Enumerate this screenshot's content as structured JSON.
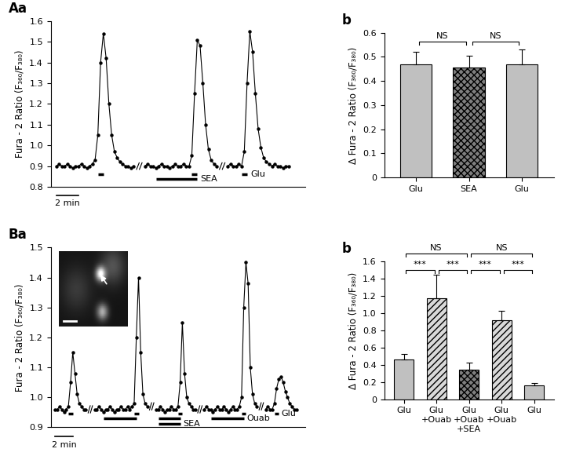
{
  "chart_data": [
    {
      "panel": "Aa",
      "type": "line",
      "y_label": "Fura - 2 Ratio (F₃₆₀/F₃₈₀)",
      "xlim": [
        -0.5,
        22.5
      ],
      "ylim": [
        0.8,
        1.6
      ],
      "yticks": [
        0.8,
        0.9,
        1.0,
        1.1,
        1.2,
        1.3,
        1.4,
        1.5,
        1.6
      ],
      "tick_labels": "y",
      "series": [
        {
          "color": "#000000",
          "marker": "circle",
          "x": [
            0,
            0.25,
            0.5,
            0.75,
            1.0,
            1.25,
            1.5,
            1.75,
            2.0,
            2.25,
            2.5,
            2.75,
            3.0,
            3.25,
            3.5,
            3.75,
            4.0,
            4.25,
            4.5,
            4.75,
            5.0,
            5.25,
            5.5,
            5.75,
            6.0,
            6.25,
            6.5,
            6.75,
            7.0,
            7.5,
            8.0,
            8.25,
            8.5,
            8.75,
            9.0,
            9.25,
            9.5,
            9.75,
            10.0,
            10.25,
            10.5,
            10.75,
            11.0,
            11.25,
            11.5,
            11.75,
            12.0,
            12.25,
            12.5,
            12.75,
            13.0,
            13.25,
            13.5,
            13.75,
            14.0,
            14.25,
            14.5,
            15.0,
            15.5,
            15.75,
            16.0,
            16.25,
            16.5,
            16.75,
            17.0,
            17.25,
            17.5,
            17.75,
            18.0,
            18.25,
            18.5,
            18.75,
            19.0,
            19.25,
            19.5,
            19.75,
            20.0,
            20.25,
            20.5,
            20.75,
            21.0
          ],
          "values": [
            0.9,
            0.91,
            0.9,
            0.9,
            0.91,
            0.9,
            0.89,
            0.9,
            0.9,
            0.91,
            0.9,
            0.89,
            0.9,
            0.91,
            0.93,
            1.05,
            1.4,
            1.54,
            1.42,
            1.2,
            1.05,
            0.97,
            0.94,
            0.92,
            0.91,
            0.9,
            0.9,
            0.89,
            0.9,
            null,
            0.9,
            0.91,
            0.9,
            0.9,
            0.89,
            0.9,
            0.91,
            0.9,
            0.9,
            0.89,
            0.9,
            0.91,
            0.9,
            0.9,
            0.91,
            0.9,
            0.9,
            0.95,
            1.25,
            1.51,
            1.48,
            1.3,
            1.1,
            0.98,
            0.93,
            0.91,
            0.9,
            null,
            0.9,
            0.91,
            0.9,
            0.9,
            0.91,
            0.9,
            0.97,
            1.3,
            1.55,
            1.45,
            1.25,
            1.08,
            0.99,
            0.94,
            0.92,
            0.91,
            0.9,
            0.91,
            0.9,
            0.9,
            0.89,
            0.9,
            0.9
          ]
        }
      ],
      "events": [
        {
          "start": 3.75,
          "end": 4.25
        },
        {
          "start": 12.25,
          "end": 12.75
        },
        {
          "start": 9.0,
          "end": 12.75,
          "label": "SEA"
        },
        {
          "start": 16.75,
          "end": 17.25,
          "label": "Glu"
        }
      ],
      "scale_bar": {
        "length": 2,
        "label": "2 min"
      }
    },
    {
      "panel": "b",
      "type": "bar",
      "y_label": "Δ Fura - 2 Ratio (F₃₆₀/F₃₈₀)",
      "categories": [
        "Glu",
        "SEA",
        "Glu"
      ],
      "values": [
        0.47,
        0.455,
        0.47
      ],
      "error": [
        0.05,
        0.05,
        0.06
      ],
      "colors": [
        "#c0c0c0",
        "#7f7f7f",
        "#c0c0c0"
      ],
      "ylim": [
        0,
        0.6
      ],
      "yticks": [
        0,
        0.1,
        0.2,
        0.3,
        0.4,
        0.5,
        0.6
      ],
      "significance": [
        {
          "from": 0,
          "to": 1,
          "label": "NS"
        },
        {
          "from": 1,
          "to": 2,
          "label": "NS"
        }
      ]
    },
    {
      "panel": "Ba",
      "type": "line",
      "y_label": "Fura - 2 Ratio (F₃₆₀/F₃₈₀)",
      "xlim": [
        -0.5,
        28.5
      ],
      "ylim": [
        0.9,
        1.5
      ],
      "yticks": [
        0.9,
        1.0,
        1.1,
        1.2,
        1.3,
        1.4,
        1.5
      ],
      "tick_labels": "y",
      "series": [
        {
          "color": "#000000",
          "marker": "circle",
          "x": [
            0,
            0.25,
            0.5,
            0.75,
            1.0,
            1.25,
            1.5,
            1.75,
            2.0,
            2.25,
            2.5,
            2.75,
            3.0,
            3.25,
            3.5,
            4.0,
            4.5,
            4.75,
            5.0,
            5.25,
            5.5,
            5.75,
            6.0,
            6.25,
            6.5,
            6.75,
            7.0,
            7.25,
            7.5,
            7.75,
            8.0,
            8.25,
            8.5,
            8.75,
            9.0,
            9.25,
            9.5,
            9.75,
            10.0,
            10.25,
            10.5,
            11.0,
            11.5,
            11.75,
            12.0,
            12.25,
            12.5,
            12.75,
            13.0,
            13.25,
            13.5,
            13.75,
            14.0,
            14.25,
            14.5,
            14.75,
            15.0,
            15.25,
            15.5,
            15.75,
            16.0,
            16.5,
            17.0,
            17.25,
            17.5,
            17.75,
            18.0,
            18.25,
            18.5,
            18.75,
            19.0,
            19.25,
            19.5,
            19.75,
            20.0,
            20.25,
            20.5,
            20.75,
            21.0,
            21.25,
            21.5,
            21.75,
            22.0,
            22.25,
            22.5,
            22.75,
            23.0,
            23.5,
            24.0,
            24.25,
            24.5,
            24.75,
            25.0,
            25.25,
            25.5,
            25.75,
            26.0,
            26.25,
            26.5,
            26.75,
            27.0,
            27.25,
            27.5
          ],
          "values": [
            0.96,
            0.96,
            0.97,
            0.96,
            0.95,
            0.96,
            0.97,
            1.05,
            1.15,
            1.08,
            1.01,
            0.98,
            0.97,
            0.96,
            0.96,
            null,
            0.96,
            0.96,
            0.97,
            0.96,
            0.95,
            0.96,
            0.96,
            0.97,
            0.96,
            0.95,
            0.96,
            0.96,
            0.97,
            0.96,
            0.96,
            0.97,
            0.96,
            0.97,
            0.98,
            1.2,
            1.4,
            1.15,
            1.01,
            0.98,
            0.97,
            null,
            0.96,
            0.96,
            0.97,
            0.96,
            0.95,
            0.96,
            0.96,
            0.97,
            0.96,
            0.96,
            0.97,
            1.05,
            1.25,
            1.08,
            1.0,
            0.98,
            0.97,
            0.96,
            0.96,
            null,
            0.96,
            0.97,
            0.96,
            0.96,
            0.95,
            0.96,
            0.97,
            0.96,
            0.96,
            0.97,
            0.96,
            0.95,
            0.96,
            0.97,
            0.96,
            0.96,
            0.97,
            1.0,
            1.3,
            1.45,
            1.38,
            1.1,
            1.01,
            0.98,
            0.97,
            null,
            0.96,
            0.97,
            0.96,
            0.96,
            0.98,
            1.03,
            1.06,
            1.07,
            1.05,
            1.02,
            1.0,
            0.98,
            0.97,
            0.96,
            0.96
          ]
        }
      ],
      "events": [
        {
          "start": 1.5,
          "end": 2.0
        },
        {
          "start": 9.0,
          "end": 9.5
        },
        {
          "start": 5.5,
          "end": 9.25
        },
        {
          "start": 14.0,
          "end": 14.5
        },
        {
          "start": 11.75,
          "end": 14.25
        },
        {
          "start": 11.75,
          "end": 14.25,
          "label": "SEA"
        },
        {
          "start": 21.25,
          "end": 21.75
        },
        {
          "start": 17.75,
          "end": 21.5,
          "label": "Ouab"
        },
        {
          "start": 25.0,
          "end": 25.5,
          "label": "Glu"
        }
      ],
      "scale_bar": {
        "length": 2,
        "label": "2 min"
      }
    },
    {
      "panel": "b",
      "type": "bar",
      "y_label": "Δ Fura - 2 Ratio (F₃₆₀/F₃₈₀)",
      "categories": [
        "Glu",
        "Glu\n+Ouab",
        "Glu\n+Ouab\n+SEA",
        "Glu\n+Ouab",
        "Glu"
      ],
      "values": [
        0.46,
        1.17,
        0.345,
        0.92,
        0.165
      ],
      "error": [
        0.07,
        0.28,
        0.08,
        0.11,
        0.02
      ],
      "colors": [
        "#c0c0c0",
        "#d9d9d9",
        "#7f7f7f",
        "#d9d9d9",
        "#c0c0c0"
      ],
      "ylim": [
        0,
        1.6
      ],
      "yticks": [
        0,
        0.2,
        0.4,
        0.6,
        0.8,
        1.0,
        1.2,
        1.4,
        1.6
      ],
      "significance": [
        {
          "from": 0,
          "to": 1,
          "label": "***"
        },
        {
          "from": 1,
          "to": 2,
          "label": "***"
        },
        {
          "from": 2,
          "to": 3,
          "label": "***"
        },
        {
          "from": 3,
          "to": 4,
          "label": "***"
        },
        {
          "from": 0,
          "to": 2,
          "label": "NS"
        },
        {
          "from": 2,
          "to": 4,
          "label": "NS"
        }
      ]
    }
  ]
}
